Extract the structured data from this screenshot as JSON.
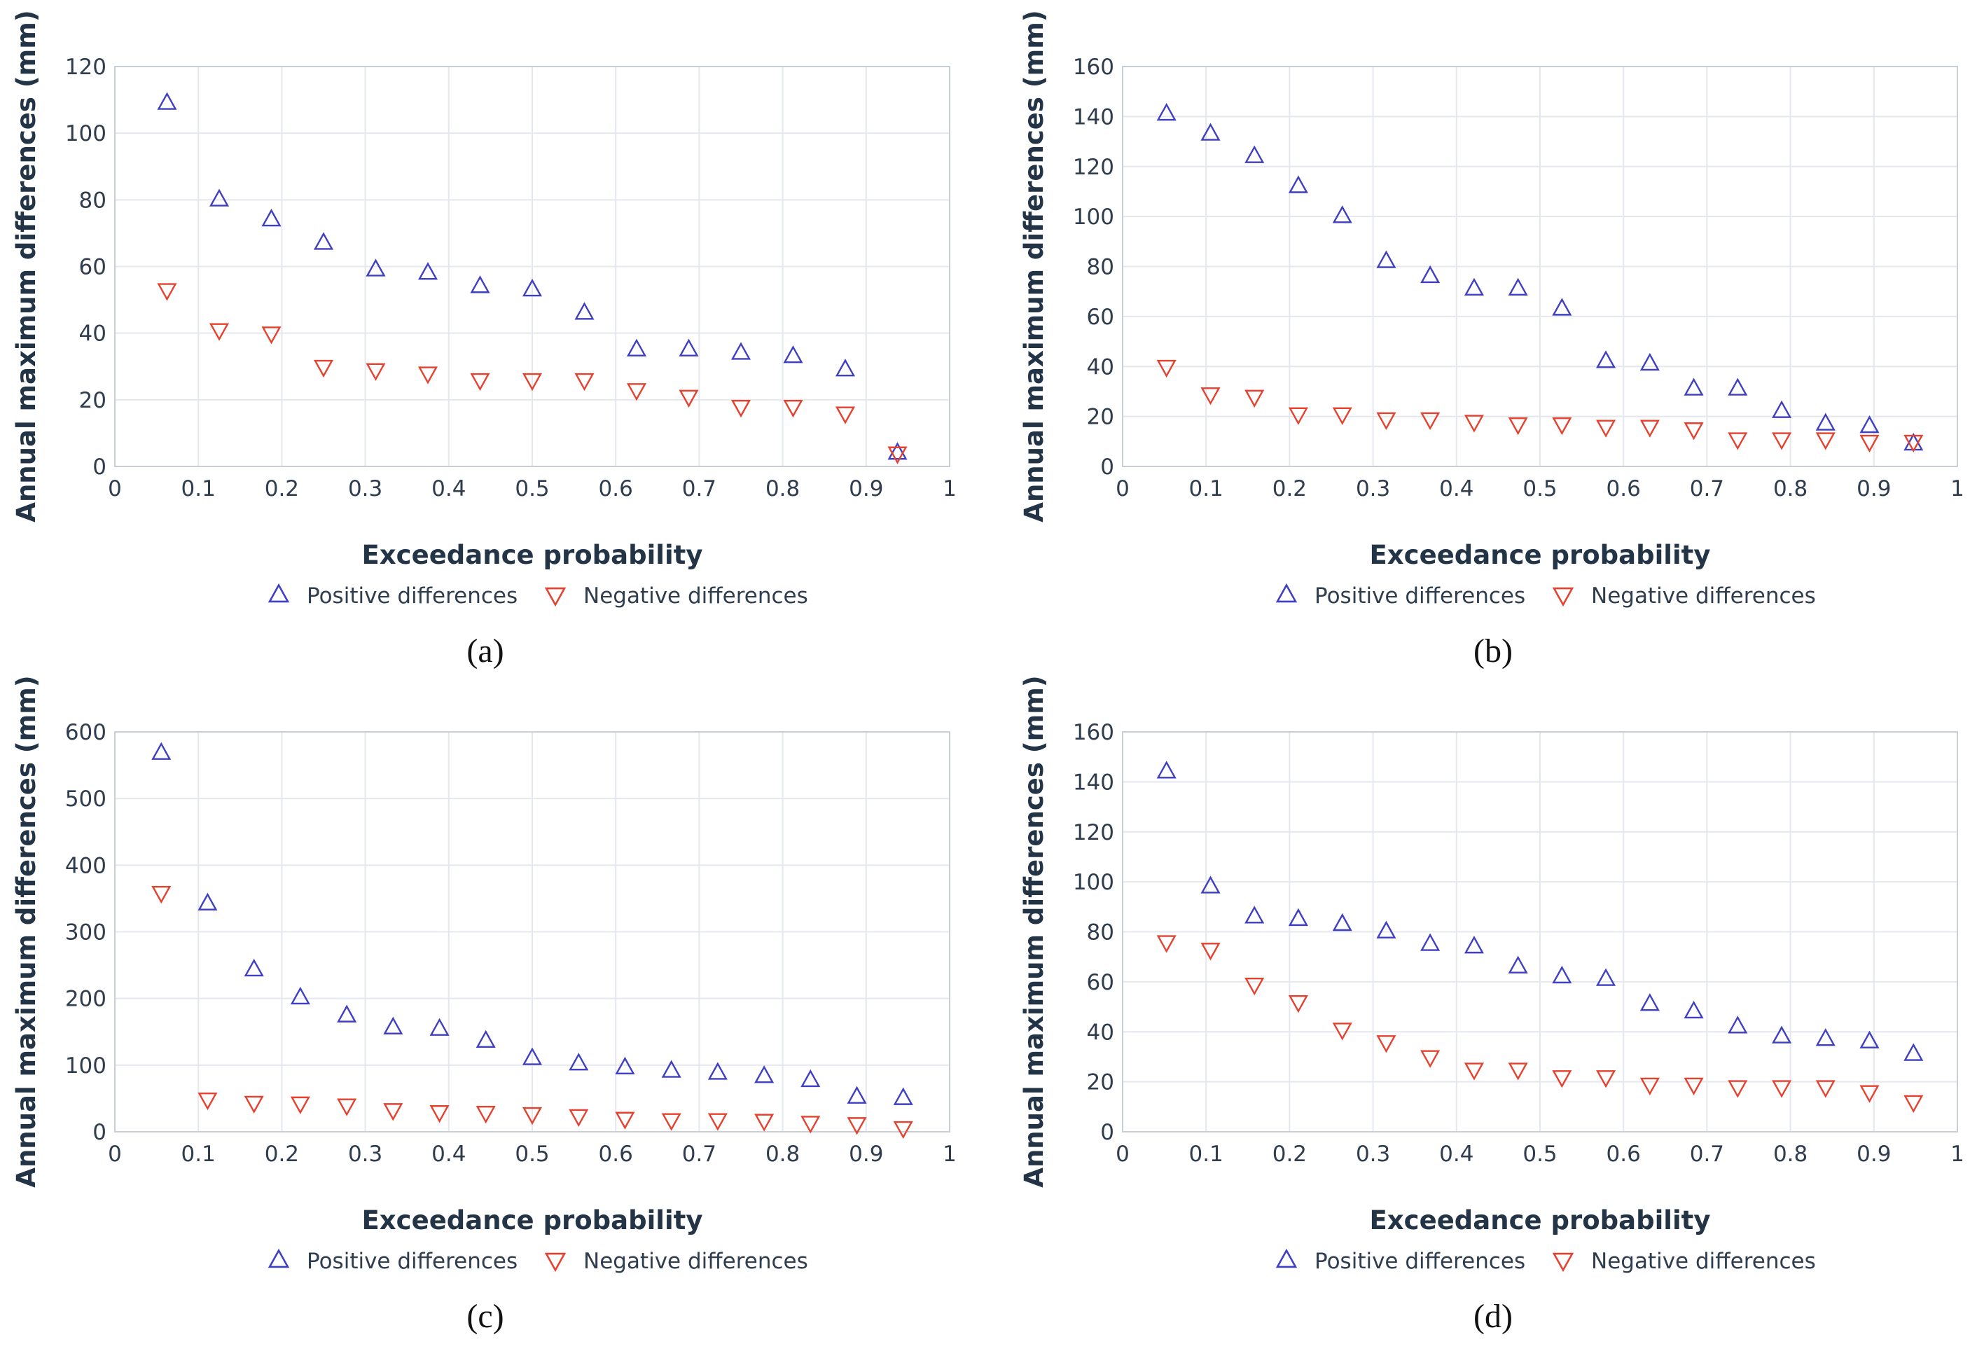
{
  "colors": {
    "positive": "#3f3fc2",
    "negative": "#e5412f",
    "axis_text": "#2f3d4f"
  },
  "chart_data": [
    {
      "panel": "(a)",
      "type": "scatter",
      "xlabel": "Exceedance probability",
      "ylabel": "Annual maximum differences (mm)",
      "xlim": [
        0,
        1
      ],
      "ylim": [
        0,
        120
      ],
      "x_ticks": [
        0,
        0.1,
        0.2,
        0.3,
        0.4,
        0.5,
        0.6,
        0.7,
        0.8,
        0.9,
        1
      ],
      "y_ticks": [
        0,
        20,
        40,
        60,
        80,
        100,
        120
      ],
      "legend": [
        "Positive differences",
        "Negative differences"
      ],
      "series": [
        {
          "name": "Positive differences",
          "marker": "triangle-up",
          "x": [
            0.0625,
            0.125,
            0.1875,
            0.25,
            0.3125,
            0.375,
            0.4375,
            0.5,
            0.5625,
            0.625,
            0.6875,
            0.75,
            0.8125,
            0.875,
            0.9375
          ],
          "y": [
            109,
            80,
            74,
            67,
            59,
            58,
            54,
            53,
            46,
            35,
            35,
            34,
            33,
            29,
            4
          ]
        },
        {
          "name": "Negative differences",
          "marker": "triangle-down",
          "x": [
            0.0625,
            0.125,
            0.1875,
            0.25,
            0.3125,
            0.375,
            0.4375,
            0.5,
            0.5625,
            0.625,
            0.6875,
            0.75,
            0.8125,
            0.875,
            0.9375
          ],
          "y": [
            53,
            41,
            40,
            30,
            29,
            28,
            26,
            26,
            26,
            23,
            21,
            18,
            18,
            16,
            4
          ]
        }
      ]
    },
    {
      "panel": "(b)",
      "type": "scatter",
      "xlabel": "Exceedance probability",
      "ylabel": "Annual maximum differences (mm)",
      "xlim": [
        0,
        1
      ],
      "ylim": [
        0,
        160
      ],
      "x_ticks": [
        0,
        0.1,
        0.2,
        0.3,
        0.4,
        0.5,
        0.6,
        0.7,
        0.8,
        0.9,
        1
      ],
      "y_ticks": [
        0,
        20,
        40,
        60,
        80,
        100,
        120,
        140,
        160
      ],
      "legend": [
        "Positive differences",
        "Negative differences"
      ],
      "series": [
        {
          "name": "Positive differences",
          "marker": "triangle-up",
          "x": [
            0.0526,
            0.1053,
            0.1579,
            0.2105,
            0.2632,
            0.3158,
            0.3684,
            0.4211,
            0.4737,
            0.5263,
            0.5789,
            0.6316,
            0.6842,
            0.7368,
            0.7895,
            0.8421,
            0.8947,
            0.9474
          ],
          "y": [
            141,
            133,
            124,
            112,
            100,
            82,
            76,
            71,
            71,
            63,
            42,
            41,
            31,
            31,
            22,
            17,
            16,
            9
          ]
        },
        {
          "name": "Negative differences",
          "marker": "triangle-down",
          "x": [
            0.0526,
            0.1053,
            0.1579,
            0.2105,
            0.2632,
            0.3158,
            0.3684,
            0.4211,
            0.4737,
            0.5263,
            0.5789,
            0.6316,
            0.6842,
            0.7368,
            0.7895,
            0.8421,
            0.8947,
            0.9474
          ],
          "y": [
            40,
            29,
            28,
            21,
            21,
            19,
            19,
            18,
            17,
            17,
            16,
            16,
            15,
            11,
            11,
            11,
            10,
            10
          ]
        }
      ]
    },
    {
      "panel": "(c)",
      "type": "scatter",
      "xlabel": "Exceedance probability",
      "ylabel": "Annual maximum differences (mm)",
      "xlim": [
        0,
        1
      ],
      "ylim": [
        0,
        600
      ],
      "x_ticks": [
        0,
        0.1,
        0.2,
        0.3,
        0.4,
        0.5,
        0.6,
        0.7,
        0.8,
        0.9,
        1
      ],
      "y_ticks": [
        0,
        100,
        200,
        300,
        400,
        500,
        600
      ],
      "legend": [
        "Positive differences",
        "Negative differences"
      ],
      "series": [
        {
          "name": "Positive differences",
          "marker": "triangle-up",
          "x": [
            0.0556,
            0.1111,
            0.1667,
            0.2222,
            0.2778,
            0.3333,
            0.3889,
            0.4444,
            0.5,
            0.5556,
            0.6111,
            0.6667,
            0.7222,
            0.7778,
            0.8333,
            0.8889,
            0.9444
          ],
          "y": [
            568,
            342,
            243,
            201,
            174,
            156,
            154,
            136,
            110,
            102,
            96,
            91,
            88,
            83,
            77,
            52,
            50
          ]
        },
        {
          "name": "Negative differences",
          "marker": "triangle-down",
          "x": [
            0.0556,
            0.1111,
            0.1667,
            0.2222,
            0.2778,
            0.3333,
            0.3889,
            0.4444,
            0.5,
            0.5556,
            0.6111,
            0.6667,
            0.7222,
            0.7778,
            0.8333,
            0.8889,
            0.9444
          ],
          "y": [
            359,
            49,
            44,
            43,
            40,
            33,
            30,
            29,
            27,
            24,
            20,
            18,
            18,
            17,
            14,
            12,
            6
          ]
        }
      ]
    },
    {
      "panel": "(d)",
      "type": "scatter",
      "xlabel": "Exceedance probability",
      "ylabel": "Annual maximum differences (mm)",
      "xlim": [
        0,
        1
      ],
      "ylim": [
        0,
        160
      ],
      "x_ticks": [
        0,
        0.1,
        0.2,
        0.3,
        0.4,
        0.5,
        0.6,
        0.7,
        0.8,
        0.9,
        1
      ],
      "y_ticks": [
        0,
        20,
        40,
        60,
        80,
        100,
        120,
        140,
        160
      ],
      "legend": [
        "Positive differences",
        "Negative differences"
      ],
      "series": [
        {
          "name": "Positive differences",
          "marker": "triangle-up",
          "x": [
            0.0526,
            0.1053,
            0.1579,
            0.2105,
            0.2632,
            0.3158,
            0.3684,
            0.4211,
            0.4737,
            0.5263,
            0.5789,
            0.6316,
            0.6842,
            0.7368,
            0.7895,
            0.8421,
            0.8947,
            0.9474
          ],
          "y": [
            144,
            98,
            86,
            85,
            83,
            80,
            75,
            74,
            66,
            62,
            61,
            51,
            48,
            42,
            38,
            37,
            36,
            31
          ]
        },
        {
          "name": "Negative differences",
          "marker": "triangle-down",
          "x": [
            0.0526,
            0.1053,
            0.1579,
            0.2105,
            0.2632,
            0.3158,
            0.3684,
            0.4211,
            0.4737,
            0.5263,
            0.5789,
            0.6316,
            0.6842,
            0.7368,
            0.7895,
            0.8421,
            0.8947,
            0.9474
          ],
          "y": [
            76,
            73,
            59,
            52,
            41,
            36,
            30,
            25,
            25,
            22,
            22,
            19,
            19,
            18,
            18,
            18,
            16,
            12
          ]
        }
      ]
    }
  ]
}
